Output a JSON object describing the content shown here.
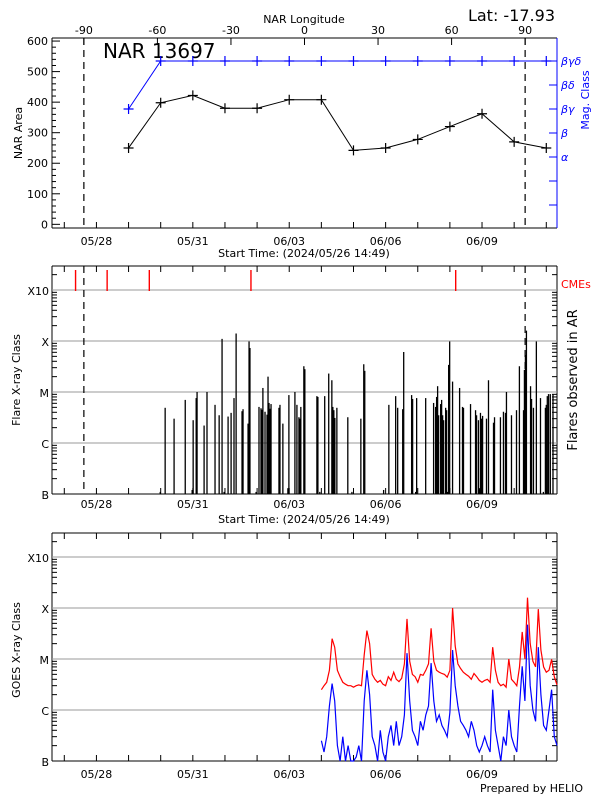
{
  "header": {
    "lat_label": "Lat: -17.93"
  },
  "footer": {
    "credit": "Prepared by HELIO"
  },
  "colors": {
    "axes": "#000000",
    "mag_class": "#0000ff",
    "cme": "#ff0000",
    "goes_long": "#ff0000",
    "goes_short": "#0000ff",
    "grid": "#999999"
  },
  "chart_data": [
    {
      "type": "line",
      "title": "NAR 13697",
      "xlabel": "Start Time: (2024/05/26 14:49)",
      "ylabel": "NAR Area",
      "y2label": "Mag. Class",
      "x2label": "NAR Longitude",
      "xlim": [
        "2024-05-26T14:49",
        "2024-06-11T08:00"
      ],
      "ylim": [
        -12,
        610
      ],
      "yticks": [
        0,
        100,
        200,
        300,
        400,
        500,
        600
      ],
      "x2lim": [
        -103,
        103
      ],
      "x2ticks": [
        -90,
        -60,
        -30,
        0,
        30,
        60,
        90
      ],
      "date_tick_labels": [
        "05/28",
        "05/31",
        "06/03",
        "06/06",
        "06/09"
      ],
      "date_tick_values": [
        "2024-05-28T00:00",
        "2024-05-31T00:00",
        "2024-06-03T00:00",
        "2024-06-06T00:00",
        "2024-06-09T00:00"
      ],
      "y2_classes": [
        "α",
        "β",
        "βγ",
        "βδ",
        "βγδ"
      ],
      "limb_longitudes": [
        -90,
        90
      ],
      "x": [
        "2024-05-29T00:00",
        "2024-05-30T00:00",
        "2024-05-31T00:00",
        "2024-06-01T00:00",
        "2024-06-02T00:00",
        "2024-06-03T00:00",
        "2024-06-04T00:00",
        "2024-06-05T00:00",
        "2024-06-06T00:00",
        "2024-06-07T00:00",
        "2024-06-08T00:00",
        "2024-06-09T00:00",
        "2024-06-10T00:00",
        "2024-06-11T00:00"
      ],
      "area": [
        250,
        398,
        422,
        380,
        380,
        408,
        408,
        242,
        250,
        278,
        320,
        362,
        270,
        250
      ],
      "mag_class": [
        "βγ",
        "βγδ",
        "βγδ",
        "βγδ",
        "βγδ",
        "βγδ",
        "βγδ",
        "βγδ",
        "βγδ",
        "βγδ",
        "βγδ",
        "βγδ",
        "βγδ",
        "βγδ"
      ]
    },
    {
      "type": "bar",
      "xlabel": "Start Time: (2024/05/26 14:49)",
      "ylabel": "Flare X-ray Class",
      "y2label": "Flares observed in AR",
      "cme_label": "CMEs",
      "yscale": "log",
      "ytick_labels": [
        "B",
        "C",
        "M",
        "X",
        "X10"
      ],
      "ytick_values": [
        1e-07,
        1e-06,
        1e-05,
        0.0001,
        0.001
      ],
      "grid": true,
      "cmes": [
        "2024-05-27T08:25",
        "2024-05-28T08:00",
        "2024-05-29T15:30",
        "2024-06-01T19:25",
        "2024-06-08T04:20"
      ],
      "flares": [
        [
          "2024-05-29T23:40",
          "B1.1"
        ],
        [
          "2024-05-30T03:20",
          "C4.9"
        ],
        [
          "2024-05-30T10:00",
          "C3.0"
        ],
        [
          "2024-05-30T18:20",
          "C7.0"
        ],
        [
          "2024-05-30T23:30",
          "B1.2"
        ],
        [
          "2024-05-31T00:15",
          "C2.8"
        ],
        [
          "2024-05-31T02:30",
          "C7.6"
        ],
        [
          "2024-05-31T03:10",
          "M1.0"
        ],
        [
          "2024-05-31T08:25",
          "C2.2"
        ],
        [
          "2024-05-31T10:35",
          "M1.0"
        ],
        [
          "2024-05-31T16:35",
          "C5.6"
        ],
        [
          "2024-05-31T19:40",
          "C3.5"
        ],
        [
          "2024-05-31T21:50",
          "X1.1"
        ],
        [
          "2024-05-31T23:20",
          "B1.1"
        ],
        [
          "2024-06-01T02:20",
          "C3.3"
        ],
        [
          "2024-06-01T04:35",
          "C3.9"
        ],
        [
          "2024-06-01T06:45",
          "C7.6"
        ],
        [
          "2024-06-01T08:20",
          "X1.4"
        ],
        [
          "2024-06-01T12:45",
          "C4.2"
        ],
        [
          "2024-06-01T13:30",
          "C4.6"
        ],
        [
          "2024-06-01T17:15",
          "C2.4"
        ],
        [
          "2024-06-01T18:00",
          "M9.8"
        ],
        [
          "2024-06-01T18:40",
          "M7.3"
        ],
        [
          "2024-06-01T23:15",
          "B1.1"
        ],
        [
          "2024-06-02T01:25",
          "C5.1"
        ],
        [
          "2024-06-02T02:55",
          "C4.8"
        ],
        [
          "2024-06-02T03:40",
          "C4.5"
        ],
        [
          "2024-06-02T04:20",
          "M1.2"
        ],
        [
          "2024-06-02T05:55",
          "C4.1"
        ],
        [
          "2024-06-02T07:25",
          "C3.6"
        ],
        [
          "2024-06-02T08:10",
          "M2.0"
        ],
        [
          "2024-06-02T08:55",
          "C6.1"
        ],
        [
          "2024-06-02T09:40",
          "C4.7"
        ],
        [
          "2024-06-02T10:25",
          "C5.8"
        ],
        [
          "2024-06-02T16:20",
          "C4.9"
        ],
        [
          "2024-06-02T17:05",
          "C5.6"
        ],
        [
          "2024-06-02T19:15",
          "C2.4"
        ],
        [
          "2024-06-02T23:00",
          "B1.3"
        ],
        [
          "2024-06-02T23:45",
          "C8.7"
        ],
        [
          "2024-06-03T04:15",
          "M1.0"
        ],
        [
          "2024-06-03T05:45",
          "C5.6"
        ],
        [
          "2024-06-03T07:15",
          "C3.2"
        ],
        [
          "2024-06-03T08:00",
          "C3.0"
        ],
        [
          "2024-06-03T08:40",
          "C5.1"
        ],
        [
          "2024-06-03T10:55",
          "M3.2"
        ],
        [
          "2024-06-03T11:40",
          "M2.8"
        ],
        [
          "2024-06-03T20:40",
          "C8.3"
        ],
        [
          "2024-06-03T21:25",
          "C8.0"
        ],
        [
          "2024-06-03T22:50",
          "B1.1"
        ],
        [
          "2024-06-04T02:30",
          "C8.3"
        ],
        [
          "2024-06-04T05:30",
          "M2.3"
        ],
        [
          "2024-06-04T07:50",
          "M1.7"
        ],
        [
          "2024-06-04T08:35",
          "C5.1"
        ],
        [
          "2024-06-04T09:20",
          "C4.4"
        ],
        [
          "2024-06-04T10:05",
          "C3.1"
        ],
        [
          "2024-06-04T11:35",
          "C4.9"
        ],
        [
          "2024-06-04T19:45",
          "C3.2"
        ],
        [
          "2024-06-04T22:50",
          "B1.1"
        ],
        [
          "2024-06-05T05:30",
          "C3.0"
        ],
        [
          "2024-06-05T07:40",
          "M3.5"
        ],
        [
          "2024-06-05T08:25",
          "M2.6"
        ],
        [
          "2024-06-05T22:30",
          "B1.2"
        ],
        [
          "2024-06-06T02:25",
          "C5.6"
        ],
        [
          "2024-06-06T07:30",
          "C8.3"
        ],
        [
          "2024-06-06T09:00",
          "C4.9"
        ],
        [
          "2024-06-06T12:45",
          "C4.6"
        ],
        [
          "2024-06-06T13:30",
          "M6.1"
        ],
        [
          "2024-06-06T19:25",
          "C8.7"
        ],
        [
          "2024-06-06T20:10",
          "C7.3"
        ],
        [
          "2024-06-06T22:25",
          "B1.1"
        ],
        [
          "2024-06-06T23:10",
          "C7.6"
        ],
        [
          "2024-06-07T05:55",
          "C7.6"
        ],
        [
          "2024-06-07T11:50",
          "C6.1"
        ],
        [
          "2024-06-07T13:20",
          "C5.1"
        ],
        [
          "2024-06-07T14:05",
          "C8.0"
        ],
        [
          "2024-06-07T14:50",
          "M1.3"
        ],
        [
          "2024-06-07T15:35",
          "C3.5"
        ],
        [
          "2024-06-07T17:05",
          "C5.8"
        ],
        [
          "2024-06-07T17:50",
          "C7.0"
        ],
        [
          "2024-06-07T18:35",
          "C3.5"
        ],
        [
          "2024-06-07T19:20",
          "C2.8"
        ],
        [
          "2024-06-07T20:50",
          "C4.9"
        ],
        [
          "2024-06-07T21:35",
          "C4.4"
        ],
        [
          "2024-06-07T22:20",
          "B1.1"
        ],
        [
          "2024-06-07T23:05",
          "M3.4"
        ],
        [
          "2024-06-07T23:50",
          "M9.8"
        ],
        [
          "2024-06-08T02:00",
          "M1.6"
        ],
        [
          "2024-06-08T07:15",
          "M1.2"
        ],
        [
          "2024-06-08T09:25",
          "C5.1"
        ],
        [
          "2024-06-08T10:10",
          "C4.9"
        ],
        [
          "2024-06-08T15:25",
          "C5.8"
        ],
        [
          "2024-06-08T19:10",
          "C4.4"
        ],
        [
          "2024-06-08T19:55",
          "C3.5"
        ],
        [
          "2024-06-08T21:20",
          "C2.8"
        ],
        [
          "2024-06-08T22:05",
          "B1.3"
        ],
        [
          "2024-06-08T22:50",
          "C3.9"
        ],
        [
          "2024-06-08T23:35",
          "C3.0"
        ],
        [
          "2024-06-09T00:25",
          "C3.4"
        ],
        [
          "2024-06-09T03:20",
          "C3.0"
        ],
        [
          "2024-06-09T04:50",
          "M1.7"
        ],
        [
          "2024-06-09T08:35",
          "C2.5"
        ],
        [
          "2024-06-09T09:20",
          "C3.2"
        ],
        [
          "2024-06-09T13:45",
          "C3.2"
        ],
        [
          "2024-06-09T16:00",
          "C4.1"
        ],
        [
          "2024-06-09T17:30",
          "C3.9"
        ],
        [
          "2024-06-09T18:15",
          "M1.0"
        ],
        [
          "2024-06-09T22:00",
          "C3.5"
        ],
        [
          "2024-06-10T01:45",
          "C4.4"
        ],
        [
          "2024-06-10T03:55",
          "M3.2"
        ],
        [
          "2024-06-10T07:00",
          "C4.4"
        ],
        [
          "2024-06-10T07:40",
          "M2.7"
        ],
        [
          "2024-06-10T08:25",
          "M5.3"
        ],
        [
          "2024-06-10T09:10",
          "X1.6"
        ],
        [
          "2024-06-10T12:15",
          "M1.3"
        ],
        [
          "2024-06-10T13:00",
          "C7.3"
        ],
        [
          "2024-06-10T14:25",
          "C4.9"
        ],
        [
          "2024-06-10T16:35",
          "M9.8"
        ],
        [
          "2024-06-10T19:40",
          "C7.6"
        ],
        [
          "2024-06-10T21:50",
          "B1.1"
        ],
        [
          "2024-06-10T23:20",
          "C4.9"
        ],
        [
          "2024-06-11T00:00",
          "C5.6"
        ],
        [
          "2024-06-11T00:45",
          "C8.3"
        ],
        [
          "2024-06-11T01:40",
          "C9.1"
        ],
        [
          "2024-06-11T03:00",
          "C9.1"
        ],
        [
          "2024-06-11T05:00",
          "C9.0"
        ]
      ]
    },
    {
      "type": "line",
      "ylabel": "GOES X-ray Class",
      "yscale": "log",
      "ytick_labels": [
        "B",
        "C",
        "M",
        "X",
        "X10"
      ],
      "ytick_values": [
        1e-07,
        1e-06,
        1e-05,
        0.0001,
        0.001
      ],
      "grid": true,
      "x": [
        "2024-06-04T00:00",
        "2024-06-04T02:00",
        "2024-06-04T04:00",
        "2024-06-04T06:00",
        "2024-06-04T08:00",
        "2024-06-04T10:00",
        "2024-06-04T12:00",
        "2024-06-04T14:00",
        "2024-06-04T16:00",
        "2024-06-04T18:00",
        "2024-06-04T20:00",
        "2024-06-04T22:00",
        "2024-06-05T00:00",
        "2024-06-05T02:00",
        "2024-06-05T04:00",
        "2024-06-05T06:00",
        "2024-06-05T08:00",
        "2024-06-05T10:00",
        "2024-06-05T12:00",
        "2024-06-05T14:00",
        "2024-06-05T16:00",
        "2024-06-05T18:00",
        "2024-06-05T20:00",
        "2024-06-05T22:00",
        "2024-06-06T00:00",
        "2024-06-06T02:00",
        "2024-06-06T04:00",
        "2024-06-06T06:00",
        "2024-06-06T08:00",
        "2024-06-06T10:00",
        "2024-06-06T12:00",
        "2024-06-06T14:00",
        "2024-06-06T16:00",
        "2024-06-06T18:00",
        "2024-06-06T20:00",
        "2024-06-06T22:00",
        "2024-06-07T00:00",
        "2024-06-07T02:00",
        "2024-06-07T04:00",
        "2024-06-07T06:00",
        "2024-06-07T08:00",
        "2024-06-07T10:00",
        "2024-06-07T12:00",
        "2024-06-07T14:00",
        "2024-06-07T16:00",
        "2024-06-07T18:00",
        "2024-06-07T20:00",
        "2024-06-07T22:00",
        "2024-06-08T00:00",
        "2024-06-08T02:00",
        "2024-06-08T04:00",
        "2024-06-08T06:00",
        "2024-06-08T08:00",
        "2024-06-08T10:00",
        "2024-06-08T12:00",
        "2024-06-08T14:00",
        "2024-06-08T16:00",
        "2024-06-08T18:00",
        "2024-06-08T20:00",
        "2024-06-08T22:00",
        "2024-06-09T00:00",
        "2024-06-09T02:00",
        "2024-06-09T04:00",
        "2024-06-09T06:00",
        "2024-06-09T08:00",
        "2024-06-09T10:00",
        "2024-06-09T12:00",
        "2024-06-09T14:00",
        "2024-06-09T16:00",
        "2024-06-09T18:00",
        "2024-06-09T20:00",
        "2024-06-09T22:00",
        "2024-06-10T00:00",
        "2024-06-10T02:00",
        "2024-06-10T04:00",
        "2024-06-10T06:00",
        "2024-06-10T08:00",
        "2024-06-10T10:00",
        "2024-06-10T12:00",
        "2024-06-10T14:00",
        "2024-06-10T16:00",
        "2024-06-10T18:00",
        "2024-06-10T20:00",
        "2024-06-10T22:00",
        "2024-06-11T00:00",
        "2024-06-11T02:00",
        "2024-06-11T04:00",
        "2024-06-11T06:00",
        "2024-06-11T08:00"
      ],
      "series": [
        {
          "color": "#ff0000",
          "values": [
            2.5e-06,
            3e-06,
            3.5e-06,
            6e-06,
            2.5e-05,
            1.7e-05,
            6e-06,
            4.5e-06,
            3.5e-06,
            3.2e-06,
            3e-06,
            3e-06,
            2.8e-06,
            3e-06,
            3.1e-06,
            3e-06,
            1.2e-05,
            3.6e-05,
            2e-05,
            5e-06,
            4e-06,
            3.5e-06,
            3.8e-06,
            3.2e-06,
            3e-06,
            4.5e-06,
            3.8e-06,
            5.5e-06,
            4e-06,
            3.6e-06,
            4.2e-06,
            8e-06,
            6.1e-05,
            9e-06,
            5e-06,
            4.5e-06,
            3.5e-06,
            5e-06,
            4.8e-06,
            6e-06,
            8e-06,
            4e-05,
            9e-06,
            6e-06,
            5.5e-06,
            5.2e-06,
            5e-06,
            4.4e-06,
            6e-06,
            0.0001,
            1.8e-05,
            8e-06,
            6.5e-06,
            5.5e-06,
            5e-06,
            4.6e-06,
            4e-06,
            5.2e-06,
            4.5e-06,
            3.8e-06,
            3.5e-06,
            3.8e-06,
            4e-06,
            3.5e-06,
            1.7e-05,
            6e-06,
            3.5e-06,
            3e-06,
            3.2e-06,
            2.8e-06,
            1e-05,
            4e-06,
            3.5e-06,
            3e-06,
            7e-06,
            3.4e-05,
            1e-05,
            0.00016,
            2e-05,
            9e-06,
            7e-06,
            9.5e-05,
            1.5e-05,
            7e-06,
            5.5e-06,
            6e-06,
            9.8e-06,
            4.5e-06,
            3.1e-06
          ]
        },
        {
          "color": "#0000ff",
          "values": [
            2.5e-07,
            1.5e-07,
            3e-07,
            1.2e-06,
            3.3e-06,
            1.5e-06,
            2e-07,
            1e-07,
            3e-07,
            1e-07,
            2e-07,
            1e-07,
            1e-07,
            1.2e-07,
            2e-07,
            1e-07,
            1.5e-06,
            6e-06,
            2e-06,
            3e-07,
            2e-07,
            1e-07,
            4e-07,
            1.5e-07,
            1e-07,
            3e-07,
            5e-07,
            2e-07,
            6e-07,
            2e-07,
            3e-07,
            8e-07,
            1.3e-05,
            1.5e-06,
            4e-07,
            3e-07,
            2e-07,
            6e-07,
            4e-07,
            8e-07,
            1.2e-06,
            8.3e-06,
            1.5e-06,
            6e-07,
            8e-07,
            5e-07,
            4e-07,
            3e-07,
            9e-07,
            1.5e-05,
            3e-06,
            1.2e-06,
            6e-07,
            5e-07,
            4e-07,
            3e-07,
            6e-07,
            4e-07,
            2e-07,
            1.5e-07,
            2e-07,
            3e-07,
            2e-07,
            1.5e-07,
            2.5e-06,
            4e-07,
            2e-07,
            1e-07,
            3e-07,
            2e-07,
            1e-06,
            3e-07,
            2e-07,
            1.5e-07,
            1.2e-06,
            7.2e-06,
            1.5e-06,
            4.7e-05,
            3e-06,
            1e-06,
            6e-07,
            1.7e-05,
            2e-06,
            5e-07,
            4e-07,
            1e-06,
            2.5e-06,
            3e-07,
            2e-07
          ]
        }
      ]
    }
  ]
}
